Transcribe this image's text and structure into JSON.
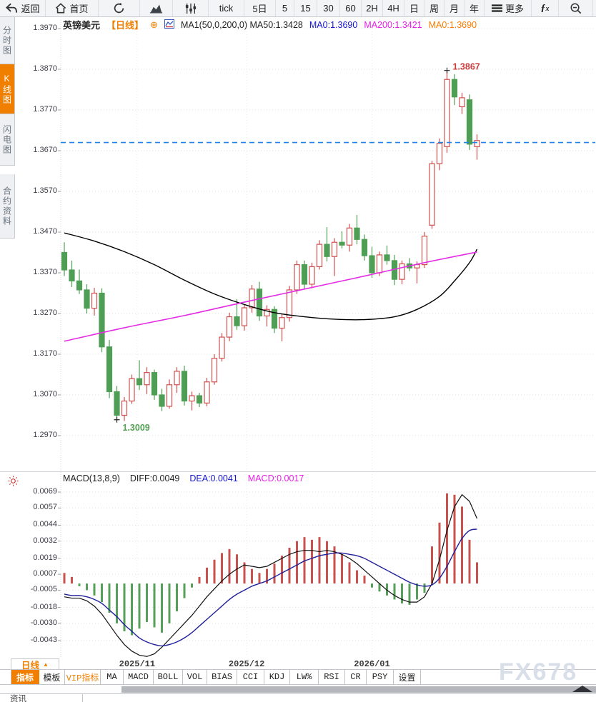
{
  "toolbar": {
    "items": [
      {
        "id": "back",
        "label": "返回",
        "icon": "back-arrow"
      },
      {
        "id": "home",
        "label": "首页",
        "icon": "home"
      },
      {
        "id": "refresh",
        "label": "",
        "icon": "refresh"
      },
      {
        "id": "area-chart",
        "label": "",
        "icon": "area-chart"
      },
      {
        "id": "candle-settings",
        "label": "",
        "icon": "sliders"
      },
      {
        "id": "tick",
        "label": "tick",
        "icon": ""
      },
      {
        "id": "5d",
        "label": "5日",
        "icon": ""
      },
      {
        "id": "5",
        "label": "5",
        "icon": ""
      },
      {
        "id": "15",
        "label": "15",
        "icon": ""
      },
      {
        "id": "30",
        "label": "30",
        "icon": ""
      },
      {
        "id": "60",
        "label": "60",
        "icon": ""
      },
      {
        "id": "2h",
        "label": "2H",
        "icon": ""
      },
      {
        "id": "4h",
        "label": "4H",
        "icon": ""
      },
      {
        "id": "day",
        "label": "日",
        "icon": ""
      },
      {
        "id": "week",
        "label": "周",
        "icon": ""
      },
      {
        "id": "month",
        "label": "月",
        "icon": ""
      },
      {
        "id": "year",
        "label": "年",
        "icon": ""
      },
      {
        "id": "more",
        "label": "更多",
        "icon": "menu"
      },
      {
        "id": "fx",
        "label": "",
        "icon": "fx"
      },
      {
        "id": "zoom-out",
        "label": "",
        "icon": "zoom-out"
      }
    ]
  },
  "sidebar": {
    "items": [
      {
        "id": "time-share",
        "label": "分时图",
        "active": false
      },
      {
        "id": "kline",
        "label": "K线图",
        "active": true
      },
      {
        "id": "lightning",
        "label": "闪电图",
        "active": false
      },
      {
        "id": "contract-info",
        "label": "合约资料",
        "active": false
      }
    ]
  },
  "chart_header": {
    "symbol": "英镑美元",
    "period": "【日线】",
    "plus": "⊕",
    "ma_main": "MA1(50,0,200,0) MA50:1.3428",
    "ma0_blue": "MA0:1.3690",
    "ma200": "MA200:1.3421",
    "ma0_orange": "MA0:1.3690"
  },
  "macd_header": {
    "title": "MACD(13,8,9)",
    "diff": "DIFF:0.0049",
    "dea": "DEA:0.0041",
    "macd": "MACD:0.0017"
  },
  "bottom": {
    "period_label": "日线",
    "period_arrow": "▲",
    "tabs": [
      {
        "label": "指标",
        "active": true,
        "vip": false
      },
      {
        "label": "模板",
        "active": false,
        "vip": false
      },
      {
        "label": "VIP指标",
        "active": false,
        "vip": true
      },
      {
        "label": "MA",
        "active": false,
        "vip": false
      },
      {
        "label": "MACD",
        "active": false,
        "vip": false
      },
      {
        "label": "BOLL",
        "active": false,
        "vip": false
      },
      {
        "label": "VOL",
        "active": false,
        "vip": false
      },
      {
        "label": "BIAS",
        "active": false,
        "vip": false
      },
      {
        "label": "CCI",
        "active": false,
        "vip": false
      },
      {
        "label": "KDJ",
        "active": false,
        "vip": false
      },
      {
        "label": "LW%",
        "active": false,
        "vip": false
      },
      {
        "label": "RSI",
        "active": false,
        "vip": false
      },
      {
        "label": "CR",
        "active": false,
        "vip": false
      },
      {
        "label": "PSY",
        "active": false,
        "vip": false
      },
      {
        "label": "设置",
        "active": false,
        "vip": false
      }
    ],
    "news_label": "资讯",
    "watermark": "FX678"
  },
  "chart_data": [
    {
      "type": "candlestick",
      "title": "英镑美元 日线",
      "y_ticks": [
        1.397,
        1.387,
        1.377,
        1.367,
        1.357,
        1.347,
        1.337,
        1.327,
        1.317,
        1.307,
        1.297
      ],
      "ylim": [
        1.292,
        1.399
      ],
      "x_labels": [
        {
          "label": "2025/11",
          "index": 9.7
        },
        {
          "label": "2025/12",
          "index": 24.3
        },
        {
          "label": "2026/01",
          "index": 41.0
        }
      ],
      "current_price": 1.369,
      "current_price_color": "#1f83ea",
      "colors": {
        "up": "#cf4f4f",
        "down": "#4f9e55"
      },
      "annotations": [
        {
          "text": "1.3867",
          "price": 1.3867,
          "index": 51,
          "color": "#cc3a3a",
          "position": "above"
        },
        {
          "text": "1.3009",
          "price": 1.3009,
          "index": 7,
          "color": "#55a055",
          "position": "below"
        }
      ],
      "candles": [
        [
          1.342,
          1.3445,
          1.3362,
          1.3377
        ],
        [
          1.3377,
          1.34,
          1.3335,
          1.335
        ],
        [
          1.335,
          1.3378,
          1.3318,
          1.3328
        ],
        [
          1.3328,
          1.3342,
          1.327,
          1.3283
        ],
        [
          1.3283,
          1.3333,
          1.3265,
          1.332
        ],
        [
          1.332,
          1.3332,
          1.3175,
          1.3188
        ],
        [
          1.3188,
          1.3205,
          1.3062,
          1.3078
        ],
        [
          1.3078,
          1.3092,
          1.3009,
          1.302
        ],
        [
          1.302,
          1.3065,
          1.3006,
          1.3055
        ],
        [
          1.3055,
          1.312,
          1.3048,
          1.311
        ],
        [
          1.311,
          1.3155,
          1.3082,
          1.3095
        ],
        [
          1.3095,
          1.3138,
          1.3072,
          1.3125
        ],
        [
          1.3125,
          1.3132,
          1.3058,
          1.307
        ],
        [
          1.307,
          1.3085,
          1.303,
          1.3042
        ],
        [
          1.3042,
          1.3108,
          1.3036,
          1.3095
        ],
        [
          1.3095,
          1.3138,
          1.3075,
          1.3128
        ],
        [
          1.3128,
          1.3142,
          1.3044,
          1.3055
        ],
        [
          1.3055,
          1.3078,
          1.3032,
          1.3068
        ],
        [
          1.3068,
          1.3075,
          1.304,
          1.305
        ],
        [
          1.305,
          1.3112,
          1.3042,
          1.3102
        ],
        [
          1.3102,
          1.317,
          1.3095,
          1.316
        ],
        [
          1.316,
          1.3222,
          1.3152,
          1.3212
        ],
        [
          1.3212,
          1.3272,
          1.3202,
          1.3262
        ],
        [
          1.3262,
          1.3305,
          1.323,
          1.324
        ],
        [
          1.324,
          1.3292,
          1.3228,
          1.3284
        ],
        [
          1.3284,
          1.334,
          1.3272,
          1.333
        ],
        [
          1.333,
          1.3348,
          1.3252,
          1.3264
        ],
        [
          1.3264,
          1.329,
          1.3238,
          1.328
        ],
        [
          1.328,
          1.3288,
          1.3222,
          1.3234
        ],
        [
          1.3234,
          1.327,
          1.3202,
          1.326
        ],
        [
          1.326,
          1.3338,
          1.325,
          1.3328
        ],
        [
          1.3328,
          1.34,
          1.3318,
          1.339
        ],
        [
          1.339,
          1.34,
          1.333,
          1.3342
        ],
        [
          1.3342,
          1.3395,
          1.3332,
          1.3385
        ],
        [
          1.3385,
          1.345,
          1.3378,
          1.344
        ],
        [
          1.344,
          1.3482,
          1.3398,
          1.341
        ],
        [
          1.341,
          1.3455,
          1.3362,
          1.3445
        ],
        [
          1.3445,
          1.3472,
          1.343,
          1.3438
        ],
        [
          1.3438,
          1.349,
          1.3422,
          1.348
        ],
        [
          1.348,
          1.3512,
          1.344,
          1.3452
        ],
        [
          1.3452,
          1.3464,
          1.34,
          1.3412
        ],
        [
          1.3412,
          1.3434,
          1.3358,
          1.337
        ],
        [
          1.337,
          1.3422,
          1.3362,
          1.3414
        ],
        [
          1.3414,
          1.3437,
          1.339,
          1.34
        ],
        [
          1.34,
          1.3414,
          1.334,
          1.3354
        ],
        [
          1.3354,
          1.34,
          1.3342,
          1.3392
        ],
        [
          1.3392,
          1.3406,
          1.3374,
          1.3382
        ],
        [
          1.3382,
          1.3398,
          1.3344,
          1.339
        ],
        [
          1.339,
          1.347,
          1.3382,
          1.346
        ],
        [
          1.3487,
          1.3645,
          1.3478,
          1.3638
        ],
        [
          1.3638,
          1.37,
          1.3622,
          1.3688
        ],
        [
          1.368,
          1.3867,
          1.3665,
          1.3845
        ],
        [
          1.3845,
          1.3858,
          1.3782,
          1.3802
        ],
        [
          1.3778,
          1.3812,
          1.376,
          1.38
        ],
        [
          1.3795,
          1.3808,
          1.3672,
          1.3686
        ],
        [
          1.368,
          1.371,
          1.3648,
          1.3695
        ]
      ],
      "ma_lines": [
        {
          "name": "MA50",
          "color": "#000000",
          "points": [
            [
              0,
              1.3468
            ],
            [
              4,
              1.3448
            ],
            [
              8,
              1.3422
            ],
            [
              12,
              1.339
            ],
            [
              16,
              1.3352
            ],
            [
              20,
              1.3318
            ],
            [
              24,
              1.3292
            ],
            [
              28,
              1.3272
            ],
            [
              32,
              1.3262
            ],
            [
              36,
              1.3256
            ],
            [
              40,
              1.3255
            ],
            [
              44,
              1.3262
            ],
            [
              47,
              1.328
            ],
            [
              50,
              1.3312
            ],
            [
              52,
              1.335
            ],
            [
              54,
              1.3395
            ],
            [
              55,
              1.3428
            ]
          ]
        },
        {
          "name": "MA200",
          "color": "#e42ce4",
          "points": [
            [
              0,
              1.3202
            ],
            [
              8,
              1.3235
            ],
            [
              16,
              1.3265
            ],
            [
              24,
              1.3298
            ],
            [
              32,
              1.333
            ],
            [
              40,
              1.3362
            ],
            [
              48,
              1.3395
            ],
            [
              55,
              1.3421
            ]
          ]
        }
      ]
    },
    {
      "type": "macd",
      "title": "MACD(13,8,9)",
      "y_ticks": [
        0.0069,
        0.0057,
        0.0044,
        0.0032,
        0.0019,
        0.0007,
        -0.0005,
        -0.0018,
        -0.003,
        -0.0043
      ],
      "colors": {
        "positive": "#c9524e",
        "negative": "#55a05a",
        "diff": "#111111",
        "dea": "#20209a"
      },
      "histogram": [
        0.0008,
        0.0005,
        -0.0002,
        -0.0005,
        -0.0009,
        -0.0014,
        -0.0022,
        -0.003,
        -0.0036,
        -0.0039,
        -0.0034,
        -0.0029,
        -0.0033,
        -0.0037,
        -0.003,
        -0.0021,
        -0.0011,
        -0.0003,
        0.0005,
        0.0012,
        0.0018,
        0.0023,
        0.0026,
        0.0022,
        0.0016,
        0.0011,
        0.0008,
        0.0011,
        0.0015,
        0.0021,
        0.0027,
        0.0032,
        0.0035,
        0.0033,
        0.0035,
        0.0032,
        0.0028,
        0.0022,
        0.0016,
        0.001,
        0.0006,
        -0.0003,
        -0.0006,
        -0.0009,
        -0.0012,
        -0.0015,
        -0.0016,
        -0.0012,
        -0.0007,
        0.0028,
        0.0046,
        0.0068,
        0.0067,
        0.0058,
        0.0033,
        0.0016
      ],
      "diff_line": [
        -0.001,
        -0.0011,
        -0.0011,
        -0.0013,
        -0.0017,
        -0.0023,
        -0.0031,
        -0.0039,
        -0.0046,
        -0.0051,
        -0.0054,
        -0.0055,
        -0.0053,
        -0.0048,
        -0.0042,
        -0.0036,
        -0.003,
        -0.0024,
        -0.0017,
        -0.001,
        -0.0004,
        0.0002,
        0.0007,
        0.0011,
        0.0014,
        0.0013,
        0.0012,
        0.0013,
        0.0016,
        0.0019,
        0.0022,
        0.0024,
        0.0025,
        0.0025,
        0.0024,
        0.0025,
        0.0024,
        0.0022,
        0.0019,
        0.0015,
        0.001,
        0.0005,
        0.0,
        -0.0005,
        -0.0009,
        -0.0012,
        -0.0014,
        -0.0014,
        -0.001,
        0.0,
        0.0018,
        0.004,
        0.0058,
        0.0067,
        0.0062,
        0.0049
      ],
      "dea_line": [
        -0.0008,
        -0.0009,
        -0.0009,
        -0.001,
        -0.0012,
        -0.0015,
        -0.002,
        -0.0025,
        -0.0031,
        -0.0036,
        -0.0041,
        -0.0044,
        -0.0046,
        -0.0047,
        -0.0046,
        -0.0044,
        -0.0041,
        -0.0037,
        -0.0032,
        -0.0027,
        -0.0022,
        -0.0017,
        -0.0012,
        -0.0008,
        -0.0005,
        -0.0002,
        0.0,
        0.0002,
        0.0005,
        0.0008,
        0.0011,
        0.0014,
        0.0017,
        0.0019,
        0.0021,
        0.0022,
        0.0023,
        0.0023,
        0.0022,
        0.0021,
        0.0019,
        0.0016,
        0.0013,
        0.001,
        0.0007,
        0.0004,
        0.0001,
        -0.0001,
        -0.0002,
        -0.0001,
        0.0004,
        0.0013,
        0.0024,
        0.0034,
        0.004,
        0.0041
      ]
    }
  ]
}
